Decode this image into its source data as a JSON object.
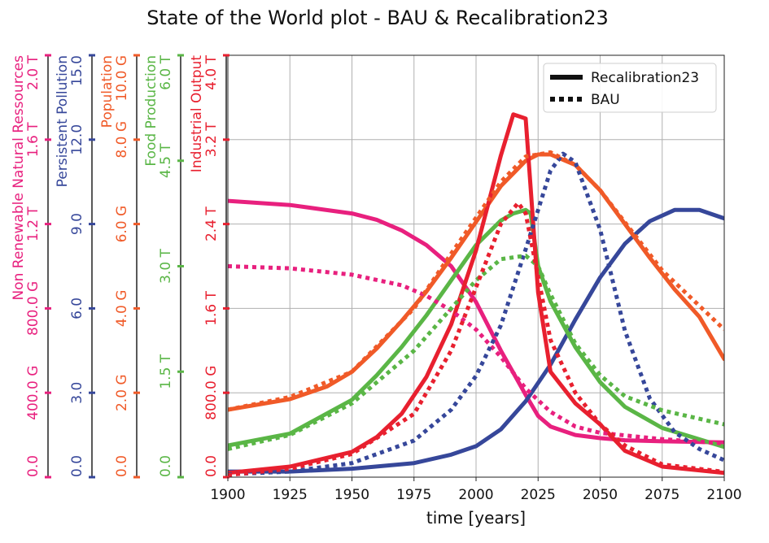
{
  "chart_data": {
    "type": "line",
    "title": "State of the World plot - BAU & Recalibration23",
    "xlabel": "time [years]",
    "xlim": [
      1900,
      2100
    ],
    "xticks": [
      1900,
      1925,
      1950,
      1975,
      2000,
      2025,
      2050,
      2075,
      2100
    ],
    "x_tick_labels": [
      "1900",
      "1925",
      "1950",
      "1975",
      "2000",
      "2025",
      "2050",
      "2075",
      "2100"
    ],
    "grid": true,
    "legend_position": "top-right",
    "legend": [
      {
        "label": "Recalibration23",
        "style": "solid"
      },
      {
        "label": "BAU",
        "style": "dotted"
      }
    ],
    "axes": [
      {
        "key": "nrr",
        "label": "Non Renewable Natural Ressources",
        "color": "#e8207e",
        "ylim": [
          0,
          2000000000000
        ],
        "ticks": [
          0,
          400000000000,
          800000000000,
          1200000000000,
          1600000000000,
          2000000000000
        ],
        "tick_labels": [
          "0.0",
          "400.0 G",
          "800.0 G",
          "1.2 T",
          "1.6 T",
          "2.0 T"
        ]
      },
      {
        "key": "ppol",
        "label": "Persistent Pollution",
        "color": "#36479a",
        "ylim": [
          0,
          15
        ],
        "ticks": [
          0,
          3,
          6,
          9,
          12,
          15
        ],
        "tick_labels": [
          "0.0",
          "3.0",
          "6.0",
          "9.0",
          "12.0",
          "15.0"
        ]
      },
      {
        "key": "pop",
        "label": "Population",
        "color": "#f05a28",
        "ylim": [
          0,
          10000000000
        ],
        "ticks": [
          0,
          2000000000,
          4000000000,
          6000000000,
          8000000000,
          10000000000
        ],
        "tick_labels": [
          "0.0",
          "2.0 G",
          "4.0 G",
          "6.0 G",
          "8.0 G",
          "10.0 G"
        ]
      },
      {
        "key": "food",
        "label": "Food Production",
        "color": "#5ab646",
        "ylim": [
          0,
          6000000000000
        ],
        "ticks": [
          0,
          1500000000000,
          3000000000000,
          4500000000000,
          6000000000000
        ],
        "tick_labels": [
          "0.0",
          "1.5 T",
          "3.0 T",
          "4.5 T",
          "6.0 T"
        ]
      },
      {
        "key": "io",
        "label": "Industrial Output",
        "color": "#e8202f",
        "ylim": [
          0,
          4000000000000
        ],
        "ticks": [
          0,
          800000000000,
          1600000000000,
          2400000000000,
          3200000000000,
          4000000000000
        ],
        "tick_labels": [
          "0.0",
          "800.0 G",
          "1.6 T",
          "2.4 T",
          "3.2 T",
          "4.0 T"
        ]
      }
    ],
    "series": [
      {
        "name": "Non Renewable Natural Ressources",
        "axis": "nrr",
        "style": "solid",
        "x": [
          1900,
          1925,
          1950,
          1960,
          1970,
          1980,
          1990,
          2000,
          2010,
          2020,
          2025,
          2030,
          2040,
          2050,
          2060,
          2075,
          2100
        ],
        "y": [
          1310000000000,
          1290000000000,
          1250000000000,
          1220000000000,
          1170000000000,
          1100000000000,
          1000000000000,
          830000000000,
          600000000000,
          390000000000,
          290000000000,
          240000000000,
          200000000000,
          185000000000,
          175000000000,
          170000000000,
          165000000000
        ]
      },
      {
        "name": "Persistent Pollution",
        "axis": "ppol",
        "style": "solid",
        "x": [
          1900,
          1925,
          1950,
          1975,
          1990,
          2000,
          2010,
          2020,
          2030,
          2040,
          2050,
          2060,
          2070,
          2080,
          2090,
          2100
        ],
        "y": [
          0.2,
          0.2,
          0.3,
          0.5,
          0.8,
          1.1,
          1.7,
          2.7,
          4.0,
          5.6,
          7.1,
          8.3,
          9.1,
          9.5,
          9.5,
          9.2
        ]
      },
      {
        "name": "Population",
        "axis": "pop",
        "style": "solid",
        "x": [
          1900,
          1925,
          1940,
          1950,
          1960,
          1970,
          1980,
          1990,
          2000,
          2010,
          2020,
          2025,
          2030,
          2040,
          2050,
          2060,
          2070,
          2080,
          2090,
          2100
        ],
        "y": [
          1600000000,
          1850000000,
          2150000000,
          2500000000,
          3050000000,
          3700000000,
          4400000000,
          5200000000,
          6050000000,
          6900000000,
          7500000000,
          7650000000,
          7650000000,
          7400000000,
          6800000000,
          6000000000,
          5200000000,
          4450000000,
          3800000000,
          2800000000
        ]
      },
      {
        "name": "Food Production",
        "axis": "food",
        "style": "solid",
        "x": [
          1900,
          1925,
          1950,
          1960,
          1970,
          1980,
          1990,
          2000,
          2010,
          2015,
          2020,
          2022,
          2025,
          2030,
          2040,
          2050,
          2060,
          2075,
          2100
        ],
        "y": [
          450000000000,
          620000000000,
          1100000000000,
          1450000000000,
          1850000000000,
          2300000000000,
          2800000000000,
          3300000000000,
          3650000000000,
          3750000000000,
          3800000000000,
          3750000000000,
          3000000000000,
          2500000000000,
          1850000000000,
          1350000000000,
          1000000000000,
          700000000000,
          430000000000
        ]
      },
      {
        "name": "Industrial Output",
        "axis": "io",
        "style": "solid",
        "x": [
          1900,
          1925,
          1950,
          1960,
          1970,
          1980,
          1990,
          2000,
          2005,
          2010,
          2015,
          2020,
          2025,
          2030,
          2040,
          2050,
          2060,
          2075,
          2100
        ],
        "y": [
          40000000000,
          100000000000,
          240000000000,
          380000000000,
          600000000000,
          950000000000,
          1450000000000,
          2150000000000,
          2600000000000,
          3050000000000,
          3440000000000,
          3400000000000,
          1750000000000,
          1000000000000,
          700000000000,
          500000000000,
          250000000000,
          100000000000,
          40000000000
        ]
      },
      {
        "name": "Non Renewable Natural Ressources",
        "axis": "nrr",
        "style": "dotted",
        "x": [
          1900,
          1925,
          1950,
          1970,
          1980,
          1990,
          2000,
          2010,
          2020,
          2030,
          2040,
          2050,
          2075,
          2100
        ],
        "y": [
          1000000000000,
          990000000000,
          960000000000,
          910000000000,
          860000000000,
          790000000000,
          700000000000,
          570000000000,
          420000000000,
          310000000000,
          240000000000,
          210000000000,
          180000000000,
          160000000000
        ]
      },
      {
        "name": "Persistent Pollution",
        "axis": "ppol",
        "style": "dotted",
        "x": [
          1900,
          1925,
          1950,
          1975,
          1990,
          2000,
          2010,
          2020,
          2030,
          2035,
          2040,
          2050,
          2060,
          2070,
          2080,
          2090,
          2100
        ],
        "y": [
          0.1,
          0.2,
          0.5,
          1.3,
          2.4,
          3.6,
          5.4,
          8.1,
          10.9,
          11.5,
          11.2,
          8.8,
          5.2,
          2.8,
          1.6,
          1.0,
          0.6
        ]
      },
      {
        "name": "Population",
        "axis": "pop",
        "style": "dotted",
        "x": [
          1900,
          1925,
          1950,
          1975,
          1990,
          2000,
          2010,
          2020,
          2030,
          2040,
          2050,
          2075,
          2100
        ],
        "y": [
          1600000000,
          1900000000,
          2500000000,
          4000000000,
          5300000000,
          6150000000,
          7000000000,
          7600000000,
          7700000000,
          7400000000,
          6800000000,
          4900000000,
          3500000000
        ]
      },
      {
        "name": "Food Production",
        "axis": "food",
        "style": "dotted",
        "x": [
          1900,
          1925,
          1950,
          1975,
          1990,
          2000,
          2010,
          2020,
          2025,
          2030,
          2040,
          2050,
          2060,
          2075,
          2100
        ],
        "y": [
          400000000000,
          600000000000,
          1050000000000,
          1800000000000,
          2400000000000,
          2800000000000,
          3100000000000,
          3150000000000,
          3000000000000,
          2600000000000,
          1900000000000,
          1450000000000,
          1150000000000,
          950000000000,
          750000000000
        ]
      },
      {
        "name": "Industrial Output",
        "axis": "io",
        "style": "dotted",
        "x": [
          1900,
          1925,
          1950,
          1975,
          1990,
          2000,
          2010,
          2017,
          2020,
          2025,
          2030,
          2040,
          2050,
          2060,
          2075,
          2100
        ],
        "y": [
          20000000000,
          80000000000,
          220000000000,
          600000000000,
          1200000000000,
          1800000000000,
          2400000000000,
          2600000000000,
          2500000000000,
          1900000000000,
          1300000000000,
          800000000000,
          500000000000,
          300000000000,
          120000000000,
          50000000000
        ]
      }
    ]
  }
}
